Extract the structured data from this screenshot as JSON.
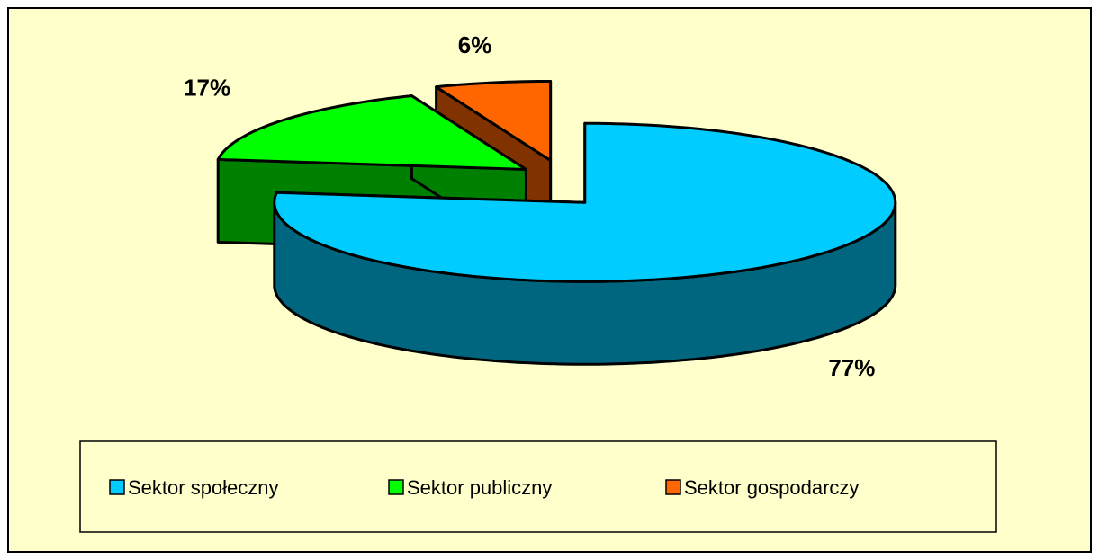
{
  "chart_data": {
    "type": "pie3d",
    "categories": [
      "Sektor społeczny",
      "Sektor publiczny",
      "Sektor gospodarczy"
    ],
    "values": [
      77,
      17,
      6
    ],
    "value_labels": [
      "77%",
      "17%",
      "6%"
    ],
    "colors": [
      "#00ccff",
      "#00ff00",
      "#ff6600"
    ],
    "legend": "bottom"
  }
}
